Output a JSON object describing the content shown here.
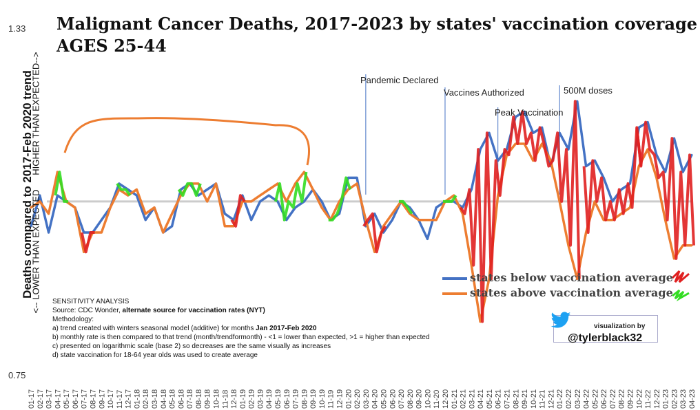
{
  "chart_data": {
    "type": "line",
    "title": "Malignant Cancer Deaths, 2017-2023 by states' vaccination coverage",
    "subtitle": "AGES 25-44",
    "ylabel": "Deaths compared to 2017-Feb 2020 trend",
    "ylabel_low": "<-- LOWER THAN EXPECTED",
    "ylabel_high": "HIGHER THAN EXPECTED-->",
    "ylim": [
      0.75,
      1.33
    ],
    "y_ticks": [
      "1.33",
      "0.75"
    ],
    "y_scale": "log2",
    "baseline": 1.0,
    "x": [
      "01-17",
      "02-17",
      "03-17",
      "04-17",
      "05-17",
      "06-17",
      "07-17",
      "08-17",
      "09-17",
      "10-17",
      "11-17",
      "12-17",
      "01-18",
      "02-18",
      "03-18",
      "04-18",
      "05-18",
      "06-18",
      "07-18",
      "08-18",
      "09-18",
      "10-18",
      "11-18",
      "12-18",
      "01-19",
      "02-19",
      "03-19",
      "04-19",
      "05-19",
      "06-19",
      "07-19",
      "08-19",
      "09-19",
      "10-19",
      "11-19",
      "12-19",
      "01-20",
      "02-20",
      "03-20",
      "04-20",
      "05-20",
      "06-20",
      "07-20",
      "08-20",
      "09-20",
      "10-20",
      "11-20",
      "12-20",
      "01-21",
      "02-21",
      "03-21",
      "04-21",
      "05-21",
      "06-21",
      "07-21",
      "08-21",
      "09-21",
      "10-21",
      "11-21",
      "12-21",
      "01-22",
      "02-22",
      "03-22",
      "04-22",
      "05-22",
      "06-22",
      "07-22",
      "08-22",
      "09-22",
      "10-22",
      "11-22",
      "12-22",
      "01-23",
      "02-23",
      "03-23",
      "04-23"
    ],
    "series": [
      {
        "name": "states below vaccination average",
        "color": "#4472c4",
        "values": [
          0.96,
          1.01,
          0.95,
          1.01,
          1.0,
          0.99,
          0.95,
          0.95,
          0.97,
          0.99,
          1.03,
          1.02,
          1.01,
          0.97,
          0.99,
          0.95,
          0.96,
          1.02,
          1.03,
          1.01,
          1.02,
          1.03,
          0.98,
          0.97,
          1.01,
          0.97,
          1.0,
          1.01,
          1.0,
          0.97,
          0.99,
          1.0,
          1.02,
          1.0,
          0.97,
          0.98,
          1.04,
          1.04,
          0.96,
          0.98,
          0.95,
          0.97,
          1.0,
          0.99,
          0.97,
          0.94,
          0.99,
          1.0,
          1.0,
          0.99,
          1.02,
          1.09,
          1.12,
          1.07,
          1.09,
          1.15,
          1.16,
          1.12,
          1.13,
          1.06,
          1.12,
          1.09,
          1.18,
          1.06,
          1.07,
          1.04,
          1.0,
          1.02,
          1.03,
          1.13,
          1.14,
          1.08,
          1.05,
          1.11,
          1.05,
          1.08
        ]
      },
      {
        "name": "states above vaccination average",
        "color": "#ed7d31",
        "values": [
          0.99,
          1.0,
          0.98,
          1.05,
          1.0,
          0.99,
          0.92,
          0.95,
          0.95,
          0.99,
          1.02,
          1.01,
          1.02,
          0.98,
          0.99,
          0.95,
          0.98,
          1.01,
          1.03,
          1.03,
          1.0,
          1.03,
          0.96,
          0.96,
          1.0,
          1.0,
          1.01,
          1.02,
          1.03,
          1.0,
          1.03,
          1.05,
          1.02,
          0.99,
          0.97,
          1.0,
          1.02,
          1.03,
          0.97,
          0.92,
          0.96,
          0.98,
          1.0,
          0.98,
          0.97,
          0.97,
          0.97,
          1.0,
          1.01,
          0.98,
          0.9,
          0.82,
          0.88,
          1.01,
          1.08,
          1.1,
          1.1,
          1.07,
          1.1,
          1.07,
          1.0,
          0.93,
          0.88,
          0.95,
          1.0,
          0.97,
          0.97,
          0.98,
          0.99,
          1.06,
          1.09,
          1.04,
          0.97,
          0.91,
          0.93,
          0.93
        ]
      }
    ],
    "annotations": [
      {
        "label": "Pandemic Declared",
        "x": "03-20"
      },
      {
        "label": "Vaccines Authorized",
        "x": "12-20"
      },
      {
        "label": "Peak Vaccination",
        "x": "06-21"
      },
      {
        "label": "500M doses",
        "x": "01-22"
      }
    ],
    "legend": {
      "placement": "bottom-right",
      "items": [
        {
          "label": "states below vaccination average",
          "color": "#4472c4",
          "scribble": "#e02020"
        },
        {
          "label": "states above vaccination average",
          "color": "#ed7d31",
          "scribble": "#33dd22"
        }
      ]
    },
    "grid": false
  },
  "methodology": {
    "heading": "SENSITIVITY ANALYSIS",
    "source_prefix": "Source: CDC Wonder, ",
    "source_bold": "alternate source for vaccination rates (NYT)",
    "label": "Methodology:",
    "a_prefix": "a) trend created with winters seasonal model (additive) for months ",
    "a_bold": "Jan 2017-Feb 2020",
    "b": "b) monthly rate is then compared to that trend (month/trendformonth) - <1 = lower than expected, >1 = higher than expected",
    "c": "c) presented on logarithmic scale (base 2) so decreases are the same visually as increases",
    "d": "d) state vaccination for 18-64 year olds was used to create average"
  },
  "credit": {
    "top": "visualization by",
    "handle": "@tylerblack32"
  },
  "colors": {
    "annotation_line": "#4472c4",
    "baseline": "#cccccc",
    "bracket": "#ed7d31",
    "twitter": "#1da1f2"
  }
}
